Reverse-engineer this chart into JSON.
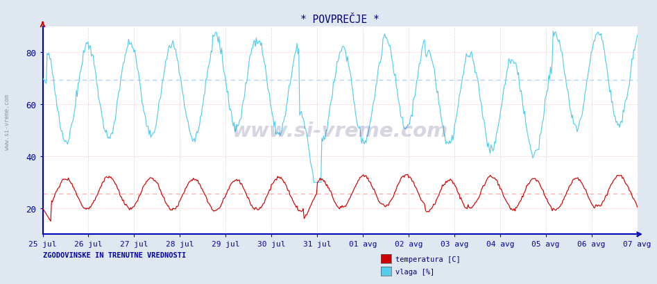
{
  "title": "* POVPREČJE *",
  "xlabel_dates": [
    "25 jul",
    "26 jul",
    "27 jul",
    "28 jul",
    "29 jul",
    "30 jul",
    "31 jul",
    "01 avg",
    "02 avg",
    "03 avg",
    "04 avg",
    "05 avg",
    "06 avg",
    "07 avg"
  ],
  "ylabel_ticks": [
    20,
    40,
    60,
    80
  ],
  "ylim": [
    10,
    90
  ],
  "n_points": 672,
  "temp_color": "#cc0000",
  "vlaga_color": "#55ccee",
  "bg_color": "#dfe8f0",
  "plot_bg_color": "#ffffff",
  "grid_h_color": "#ffaaaa",
  "grid_v_color": "#ffaaaa",
  "title_color": "#000080",
  "axis_color": "#0000cc",
  "tick_color": "#0000aa",
  "label_bottom_left": "ZGODOVINSKE IN TRENUTNE VREDNOSTI",
  "legend_items": [
    "temperatura [C]",
    "vlaga [%]"
  ],
  "watermark": "www.si-vreme.com",
  "dashed_line_temp": 25.5,
  "dashed_line_vlaga": 69.5
}
